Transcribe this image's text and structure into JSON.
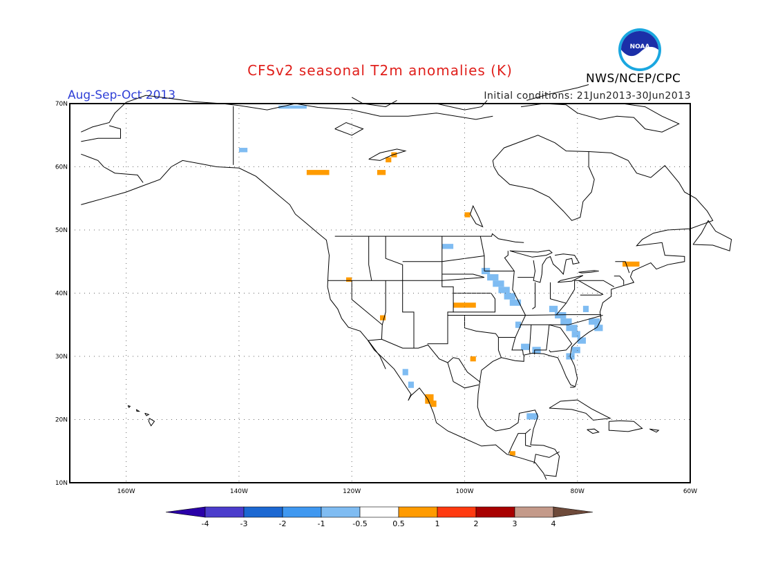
{
  "title": "CFSv2 seasonal T2m anomalies (K)",
  "season": "Aug-Sep-Oct 2013",
  "initial_conditions": "Initial conditions: 21Jun2013-30Jun2013",
  "organization": "NWS/NCEP/CPC",
  "logo_text": "NOAA",
  "map": {
    "lon_range": [
      -170,
      -60
    ],
    "lat_range": [
      10,
      70
    ],
    "lon_ticks": [
      {
        "v": -160,
        "label": "160W"
      },
      {
        "v": -140,
        "label": "140W"
      },
      {
        "v": -120,
        "label": "120W"
      },
      {
        "v": -100,
        "label": "100W"
      },
      {
        "v": -80,
        "label": "80W"
      },
      {
        "v": -60,
        "label": "60W"
      }
    ],
    "lat_ticks": [
      {
        "v": 70,
        "label": "70N"
      },
      {
        "v": 60,
        "label": "60N"
      },
      {
        "v": 50,
        "label": "50N"
      },
      {
        "v": 40,
        "label": "40N"
      },
      {
        "v": 30,
        "label": "30N"
      },
      {
        "v": 20,
        "label": "20N"
      },
      {
        "v": 10,
        "label": "10N"
      }
    ],
    "grid": true
  },
  "colorbar": {
    "labels": [
      "-4",
      "-3",
      "-2",
      "-1",
      "-0.5",
      "0.5",
      "1",
      "2",
      "3",
      "4"
    ],
    "colors": [
      "#2a00a8",
      "#4b3ccc",
      "#1c68d2",
      "#3f98f0",
      "#7fbcf2",
      "#ffffff",
      "#ff9b00",
      "#ff3a10",
      "#a80000",
      "#c49a8a",
      "#6e4a3a"
    ]
  },
  "anomaly_cells": {
    "negative": [
      [
        -133,
        69.7,
        -131,
        69.2
      ],
      [
        -131,
        69.7,
        -128,
        69.2
      ],
      [
        -140,
        63,
        -138.5,
        62.3
      ],
      [
        -104,
        47.8,
        -102,
        47
      ],
      [
        -97,
        44,
        -95.5,
        43
      ],
      [
        -96,
        43,
        -94,
        42
      ],
      [
        -95,
        42,
        -93,
        41
      ],
      [
        -94,
        41,
        -92,
        40
      ],
      [
        -93,
        40,
        -91,
        39
      ],
      [
        -92,
        39,
        -90,
        38
      ],
      [
        -85,
        38,
        -83.5,
        37
      ],
      [
        -84,
        37,
        -82,
        36
      ],
      [
        -83,
        36,
        -81,
        35
      ],
      [
        -82,
        35,
        -80,
        34
      ],
      [
        -81,
        34,
        -79.5,
        33
      ],
      [
        -80,
        33,
        -78.5,
        32
      ],
      [
        -81,
        31.5,
        -79.5,
        30.5
      ],
      [
        -82,
        30.5,
        -80.5,
        29.5
      ],
      [
        -88,
        31.5,
        -86.5,
        30.5
      ],
      [
        -90,
        32,
        -88.5,
        31
      ],
      [
        -91,
        35.5,
        -90,
        34.5
      ],
      [
        -111,
        28,
        -110,
        27
      ],
      [
        -110,
        26,
        -109,
        25
      ],
      [
        -107,
        24,
        -106,
        23
      ],
      [
        -89,
        21,
        -87,
        20
      ],
      [
        -78,
        36,
        -76,
        35
      ],
      [
        -77,
        35,
        -75.5,
        34
      ],
      [
        -79,
        38,
        -78,
        37
      ]
    ],
    "positive": [
      [
        -128,
        59.5,
        -124,
        58.7
      ],
      [
        -115.5,
        59.5,
        -114,
        58.7
      ],
      [
        -114,
        61.5,
        -113,
        60.7
      ],
      [
        -113,
        62.3,
        -112,
        61.5
      ],
      [
        -100,
        52.8,
        -99,
        52
      ],
      [
        -121,
        42.5,
        -120,
        41.8
      ],
      [
        -115,
        36.5,
        -114,
        35.7
      ],
      [
        -102,
        38.5,
        -98,
        37.7
      ],
      [
        -99,
        30,
        -98,
        29.2
      ],
      [
        -107,
        24,
        -105.5,
        22.5
      ],
      [
        -106,
        23,
        -105,
        22
      ],
      [
        -92,
        15,
        -91,
        14.3
      ],
      [
        -72,
        45,
        -69,
        44.2
      ]
    ]
  }
}
